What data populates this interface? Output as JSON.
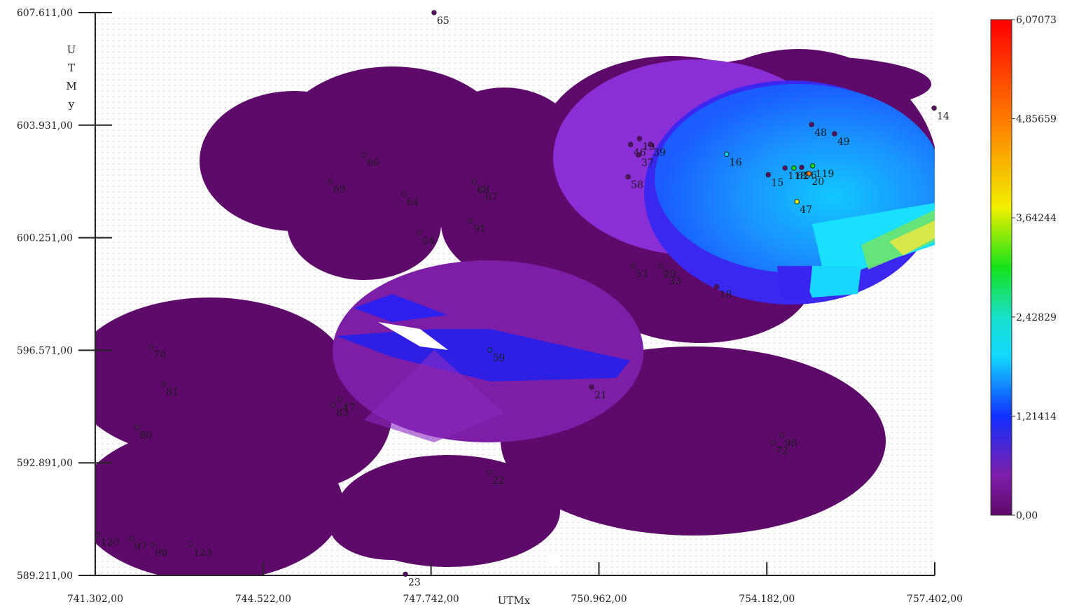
{
  "chart_data": {
    "type": "heatmap",
    "x_axis": {
      "title": "UTMx",
      "range": [
        741302,
        757402
      ],
      "ticks": [
        741302,
        744522,
        747742,
        750962,
        754182,
        757402
      ],
      "tick_labels": [
        "741.302,00",
        "744.522,00",
        "747.742,00",
        "750.962,00",
        "754.182,00",
        "757.402,00"
      ]
    },
    "y_axis": {
      "title": [
        "U",
        "T",
        "M",
        "y"
      ],
      "range": [
        589211,
        607611
      ],
      "ticks": [
        589211,
        592891,
        596571,
        600251,
        603931,
        607611
      ],
      "tick_labels": [
        "589.211,00",
        "592.891,00",
        "596.571,00",
        "600.251,00",
        "603.931,00",
        "607.611,00"
      ]
    },
    "colorbar": {
      "range": [
        0,
        6.07073
      ],
      "tick_values": [
        0,
        1.21414,
        2.42829,
        3.64244,
        4.85659,
        6.07073
      ],
      "tick_labels": [
        "0,00",
        "1,21414",
        "2,42829",
        "3,64244",
        "4,85659",
        "6,07073"
      ],
      "stops": [
        "#5e0a6a",
        "#8a2be2",
        "#1230ff",
        "#12e0ff",
        "#16e21a",
        "#f0f000",
        "#ff7a00",
        "#ff0000"
      ]
    },
    "points": [
      {
        "label": "65",
        "x": 747.8,
        "y": 607.61,
        "value": 0.0
      },
      {
        "label": "14",
        "x": 757.39,
        "y": 604.49,
        "value": 0.0
      },
      {
        "label": "48",
        "x": 755.04,
        "y": 603.95,
        "value": 0.1
      },
      {
        "label": "49",
        "x": 755.48,
        "y": 603.65,
        "value": 0.1
      },
      {
        "label": "19",
        "x": 751.74,
        "y": 603.49,
        "value": 0.0
      },
      {
        "label": "39",
        "x": 751.95,
        "y": 603.3,
        "value": 0.0
      },
      {
        "label": "46",
        "x": 751.57,
        "y": 603.3,
        "value": 0.0
      },
      {
        "label": "37",
        "x": 751.72,
        "y": 602.96,
        "value": 0.0
      },
      {
        "label": "16",
        "x": 753.41,
        "y": 602.98,
        "value": 3.0
      },
      {
        "label": "15",
        "x": 754.21,
        "y": 602.31,
        "value": 0.1
      },
      {
        "label": "118",
        "x": 754.53,
        "y": 602.53,
        "value": 0.1
      },
      {
        "label": "62",
        "x": 754.7,
        "y": 602.53,
        "value": 3.5
      },
      {
        "label": "96",
        "x": 754.85,
        "y": 602.55,
        "value": 0.1
      },
      {
        "label": "20",
        "x": 754.99,
        "y": 602.35,
        "value": 5.5
      },
      {
        "label": "119",
        "x": 755.06,
        "y": 602.6,
        "value": 3.3
      },
      {
        "label": "58",
        "x": 751.52,
        "y": 602.24,
        "value": 0.0
      },
      {
        "label": "47",
        "x": 754.76,
        "y": 601.43,
        "value": 4.5
      },
      {
        "label": "66",
        "x": 746.46,
        "y": 602.96,
        "value": 0.0
      },
      {
        "label": "69",
        "x": 745.81,
        "y": 602.1,
        "value": 0.0
      },
      {
        "label": "68",
        "x": 748.57,
        "y": 602.07,
        "value": 0.0
      },
      {
        "label": "67",
        "x": 748.73,
        "y": 601.84,
        "value": 0.0
      },
      {
        "label": "64",
        "x": 747.22,
        "y": 601.67,
        "value": 0.0
      },
      {
        "label": "91",
        "x": 748.5,
        "y": 600.8,
        "value": 0.0
      },
      {
        "label": "54",
        "x": 747.52,
        "y": 600.4,
        "value": 0.0
      },
      {
        "label": "53",
        "x": 751.61,
        "y": 599.33,
        "value": 0.0
      },
      {
        "label": "29",
        "x": 752.15,
        "y": 599.33,
        "value": 0.0
      },
      {
        "label": "33",
        "x": 752.25,
        "y": 599.1,
        "value": 0.0
      },
      {
        "label": "18",
        "x": 753.22,
        "y": 598.65,
        "value": 0.0
      },
      {
        "label": "59",
        "x": 748.87,
        "y": 596.58,
        "value": 1.8
      },
      {
        "label": "21",
        "x": 750.82,
        "y": 595.37,
        "value": 0.0
      },
      {
        "label": "70",
        "x": 742.37,
        "y": 596.69,
        "value": 0.0
      },
      {
        "label": "81",
        "x": 742.61,
        "y": 595.47,
        "value": 0.0
      },
      {
        "label": "47",
        "x": 745.99,
        "y": 594.96,
        "value": 0.0
      },
      {
        "label": "83",
        "x": 745.87,
        "y": 594.79,
        "value": 0.0
      },
      {
        "label": "80",
        "x": 742.1,
        "y": 594.05,
        "value": 0.0
      },
      {
        "label": "98",
        "x": 754.47,
        "y": 593.8,
        "value": 0.0
      },
      {
        "label": "72",
        "x": 754.3,
        "y": 593.55,
        "value": 0.0
      },
      {
        "label": "22",
        "x": 748.86,
        "y": 592.58,
        "value": 0.0
      },
      {
        "label": "120",
        "x": 741.35,
        "y": 590.55,
        "value": 0.0
      },
      {
        "label": "97",
        "x": 742.0,
        "y": 590.41,
        "value": 0.0
      },
      {
        "label": "98",
        "x": 742.4,
        "y": 590.22,
        "value": 0.0
      },
      {
        "label": "123",
        "x": 743.13,
        "y": 590.22,
        "value": 0.0
      },
      {
        "label": "23",
        "x": 747.25,
        "y": 589.25,
        "value": 0.0
      }
    ]
  }
}
